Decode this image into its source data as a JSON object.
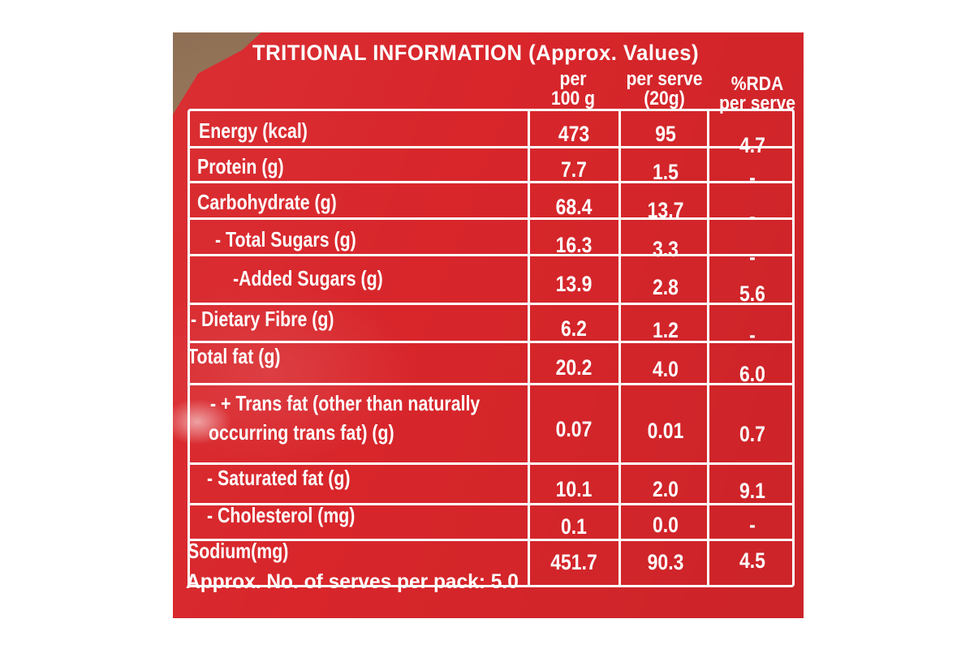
{
  "panel": {
    "title": "TRITIONAL INFORMATION (Approx. Values)",
    "columns": [
      "per 100 g",
      "per serve (20g)",
      "%RDA per serve"
    ],
    "col1_line1": "per",
    "col1_line2": "100 g",
    "col2_line1": "per serve",
    "col2_line2": "(20g)",
    "col3_line1": "%RDA",
    "col3_line2": "per serve"
  },
  "rows": [
    {
      "label": "Energy (kcal)",
      "per100": "473",
      "perserve": "95",
      "rda": "4.7"
    },
    {
      "label": "Protein (g)",
      "per100": "7.7",
      "perserve": "1.5",
      "rda": "-"
    },
    {
      "label": "Carbohydrate (g)",
      "per100": "68.4",
      "perserve": "13.7",
      "rda": "-"
    },
    {
      "label": "- Total Sugars (g)",
      "per100": "16.3",
      "perserve": "3.3",
      "rda": "-"
    },
    {
      "label": "-Added Sugars (g)",
      "per100": "13.9",
      "perserve": "2.8",
      "rda": "5.6"
    },
    {
      "label": "- Dietary Fibre (g)",
      "per100": "6.2",
      "perserve": "1.2",
      "rda": "-"
    },
    {
      "label": "Total fat (g)",
      "per100": "20.2",
      "perserve": "4.0",
      "rda": "6.0"
    },
    {
      "label_line1": "- + Trans fat (other than naturally",
      "label_line2": "occurring trans fat) (g)",
      "per100": "0.07",
      "perserve": "0.01",
      "rda": "0.7"
    },
    {
      "label": "- Saturated fat (g)",
      "per100": "10.1",
      "perserve": "2.0",
      "rda": "9.1"
    },
    {
      "label": "- Cholesterol (mg)",
      "per100": "0.1",
      "perserve": "0.0",
      "rda": "-"
    },
    {
      "label": "Sodium(mg)",
      "per100": "451.7",
      "perserve": "90.3",
      "rda": "4.5"
    }
  ],
  "footer": "Approx. No. of serves per pack: 5.0"
}
